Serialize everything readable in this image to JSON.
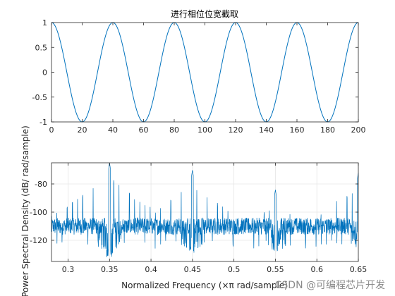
{
  "chart_data": [
    {
      "type": "line",
      "title": "进行相位位宽截取",
      "xlabel": "",
      "ylabel": "",
      "xlim": [
        0,
        200
      ],
      "ylim": [
        -1,
        1
      ],
      "x_ticks": [
        0,
        20,
        40,
        60,
        80,
        100,
        120,
        140,
        160,
        180,
        200
      ],
      "y_ticks": [
        -1,
        -0.5,
        0,
        0.5,
        1
      ],
      "x_tick_labels": [
        "0",
        "20",
        "40",
        "60",
        "80",
        "100",
        "120",
        "140",
        "160",
        "180",
        "200"
      ],
      "y_tick_labels": [
        "-1",
        "-0.5",
        "0",
        "0.5",
        "1"
      ],
      "grid": false,
      "color": "#0072BD",
      "series": [
        {
          "function": "cos",
          "period": 40,
          "amplitude": 1,
          "x_start": 0,
          "x_end": 200,
          "samples": 401
        }
      ]
    },
    {
      "type": "line",
      "title": "",
      "xlabel": "Normalized Frequency  (×π rad/sample)",
      "ylabel": "Power Spectral Density (dB/ rad/sample)",
      "xlim": [
        0.28,
        0.65
      ],
      "ylim": [
        -135,
        -65
      ],
      "x_ticks": [
        0.3,
        0.35,
        0.4,
        0.45,
        0.5,
        0.55,
        0.6,
        0.65
      ],
      "y_ticks": [
        -120,
        -100,
        -80
      ],
      "x_tick_labels": [
        "0.3",
        "0.35",
        "0.4",
        "0.45",
        "0.5",
        "0.55",
        "0.6",
        "0.65"
      ],
      "y_tick_labels": [
        "-120",
        "-100",
        "-80"
      ],
      "grid": true,
      "color": "#0072BD",
      "series": [
        {
          "noise_floor_db": -110,
          "noise_band_db": [
            -116,
            -104
          ],
          "spur_spacing": 0.00625,
          "peaks": [
            {
              "x": 0.35,
              "db": -65,
              "dip_db": -132,
              "spur_width": 0.03
            },
            {
              "x": 0.45,
              "db": -70,
              "dip_db": -130,
              "spur_width": 0.03
            },
            {
              "x": 0.55,
              "db": -84,
              "dip_db": -128,
              "spur_width": 0.025
            },
            {
              "x": 0.65,
              "db": -72,
              "dip_db": -125,
              "spur_width": 0.02
            }
          ],
          "envelope_lows": [
            {
              "x": 0.4,
              "db": -102
            },
            {
              "x": 0.5,
              "db": -103
            },
            {
              "x": 0.6,
              "db": -104
            }
          ]
        }
      ]
    }
  ],
  "watermark": "CSDN @可编程芯片开发"
}
